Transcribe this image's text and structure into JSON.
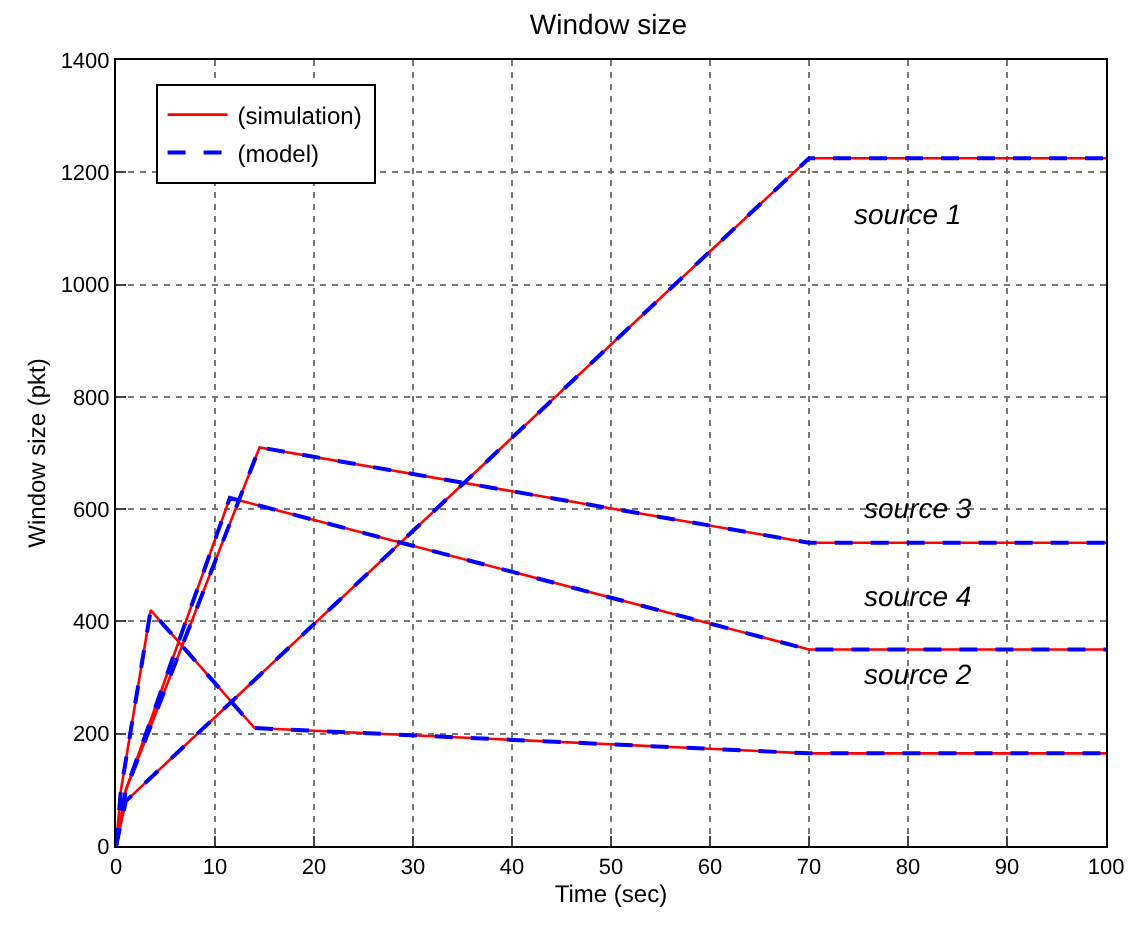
{
  "chart_data": {
    "type": "line",
    "title": "Window size",
    "xlabel": "Time (sec)",
    "ylabel": "Window size (pkt)",
    "xlim": [
      0,
      100
    ],
    "xticks": [
      0,
      10,
      20,
      30,
      40,
      50,
      60,
      70,
      80,
      90,
      100
    ],
    "ylim": [
      0,
      1400
    ],
    "yticks": [
      0,
      200,
      400,
      600,
      800,
      1000,
      1200,
      1400
    ],
    "grid": true,
    "legend": "top left",
    "marker": "none",
    "series": [
      {
        "name": "(simulation)",
        "color": "#ff0000",
        "line_style": "solid",
        "x": [
          0,
          1,
          70,
          100
        ],
        "values": [
          0,
          80,
          1225,
          1225
        ]
      },
      {
        "color": "#ff0000",
        "line_style": "solid",
        "x": [
          0,
          0.5,
          3.5,
          14,
          70,
          100
        ],
        "values": [
          0,
          100,
          420,
          210,
          165,
          165
        ]
      },
      {
        "color": "#ff0000",
        "line_style": "solid",
        "x": [
          0,
          1,
          14.5,
          70,
          100
        ],
        "values": [
          0,
          100,
          710,
          540,
          540
        ]
      },
      {
        "color": "#ff0000",
        "line_style": "solid",
        "x": [
          0,
          1,
          11.5,
          70,
          100
        ],
        "values": [
          0,
          100,
          620,
          350,
          350
        ]
      },
      {
        "name": "(model)",
        "color": "#0000ff",
        "line_style": "dashed",
        "x": [
          0,
          1,
          70,
          100
        ],
        "values": [
          0,
          80,
          1225,
          1225
        ]
      },
      {
        "color": "#0000ff",
        "line_style": "dashed",
        "x": [
          0,
          0.5,
          3.5,
          14,
          70,
          100
        ],
        "values": [
          0,
          100,
          420,
          210,
          165,
          165
        ]
      },
      {
        "color": "#0000ff",
        "line_style": "dashed",
        "x": [
          0,
          1,
          14.5,
          70,
          100
        ],
        "values": [
          0,
          100,
          710,
          540,
          540
        ]
      },
      {
        "color": "#0000ff",
        "line_style": "dashed",
        "x": [
          0,
          1,
          11.5,
          70,
          100
        ],
        "values": [
          0,
          100,
          620,
          350,
          350
        ]
      }
    ],
    "annotations": [
      "source 1",
      "source 3",
      "source 4",
      "source 2"
    ]
  }
}
